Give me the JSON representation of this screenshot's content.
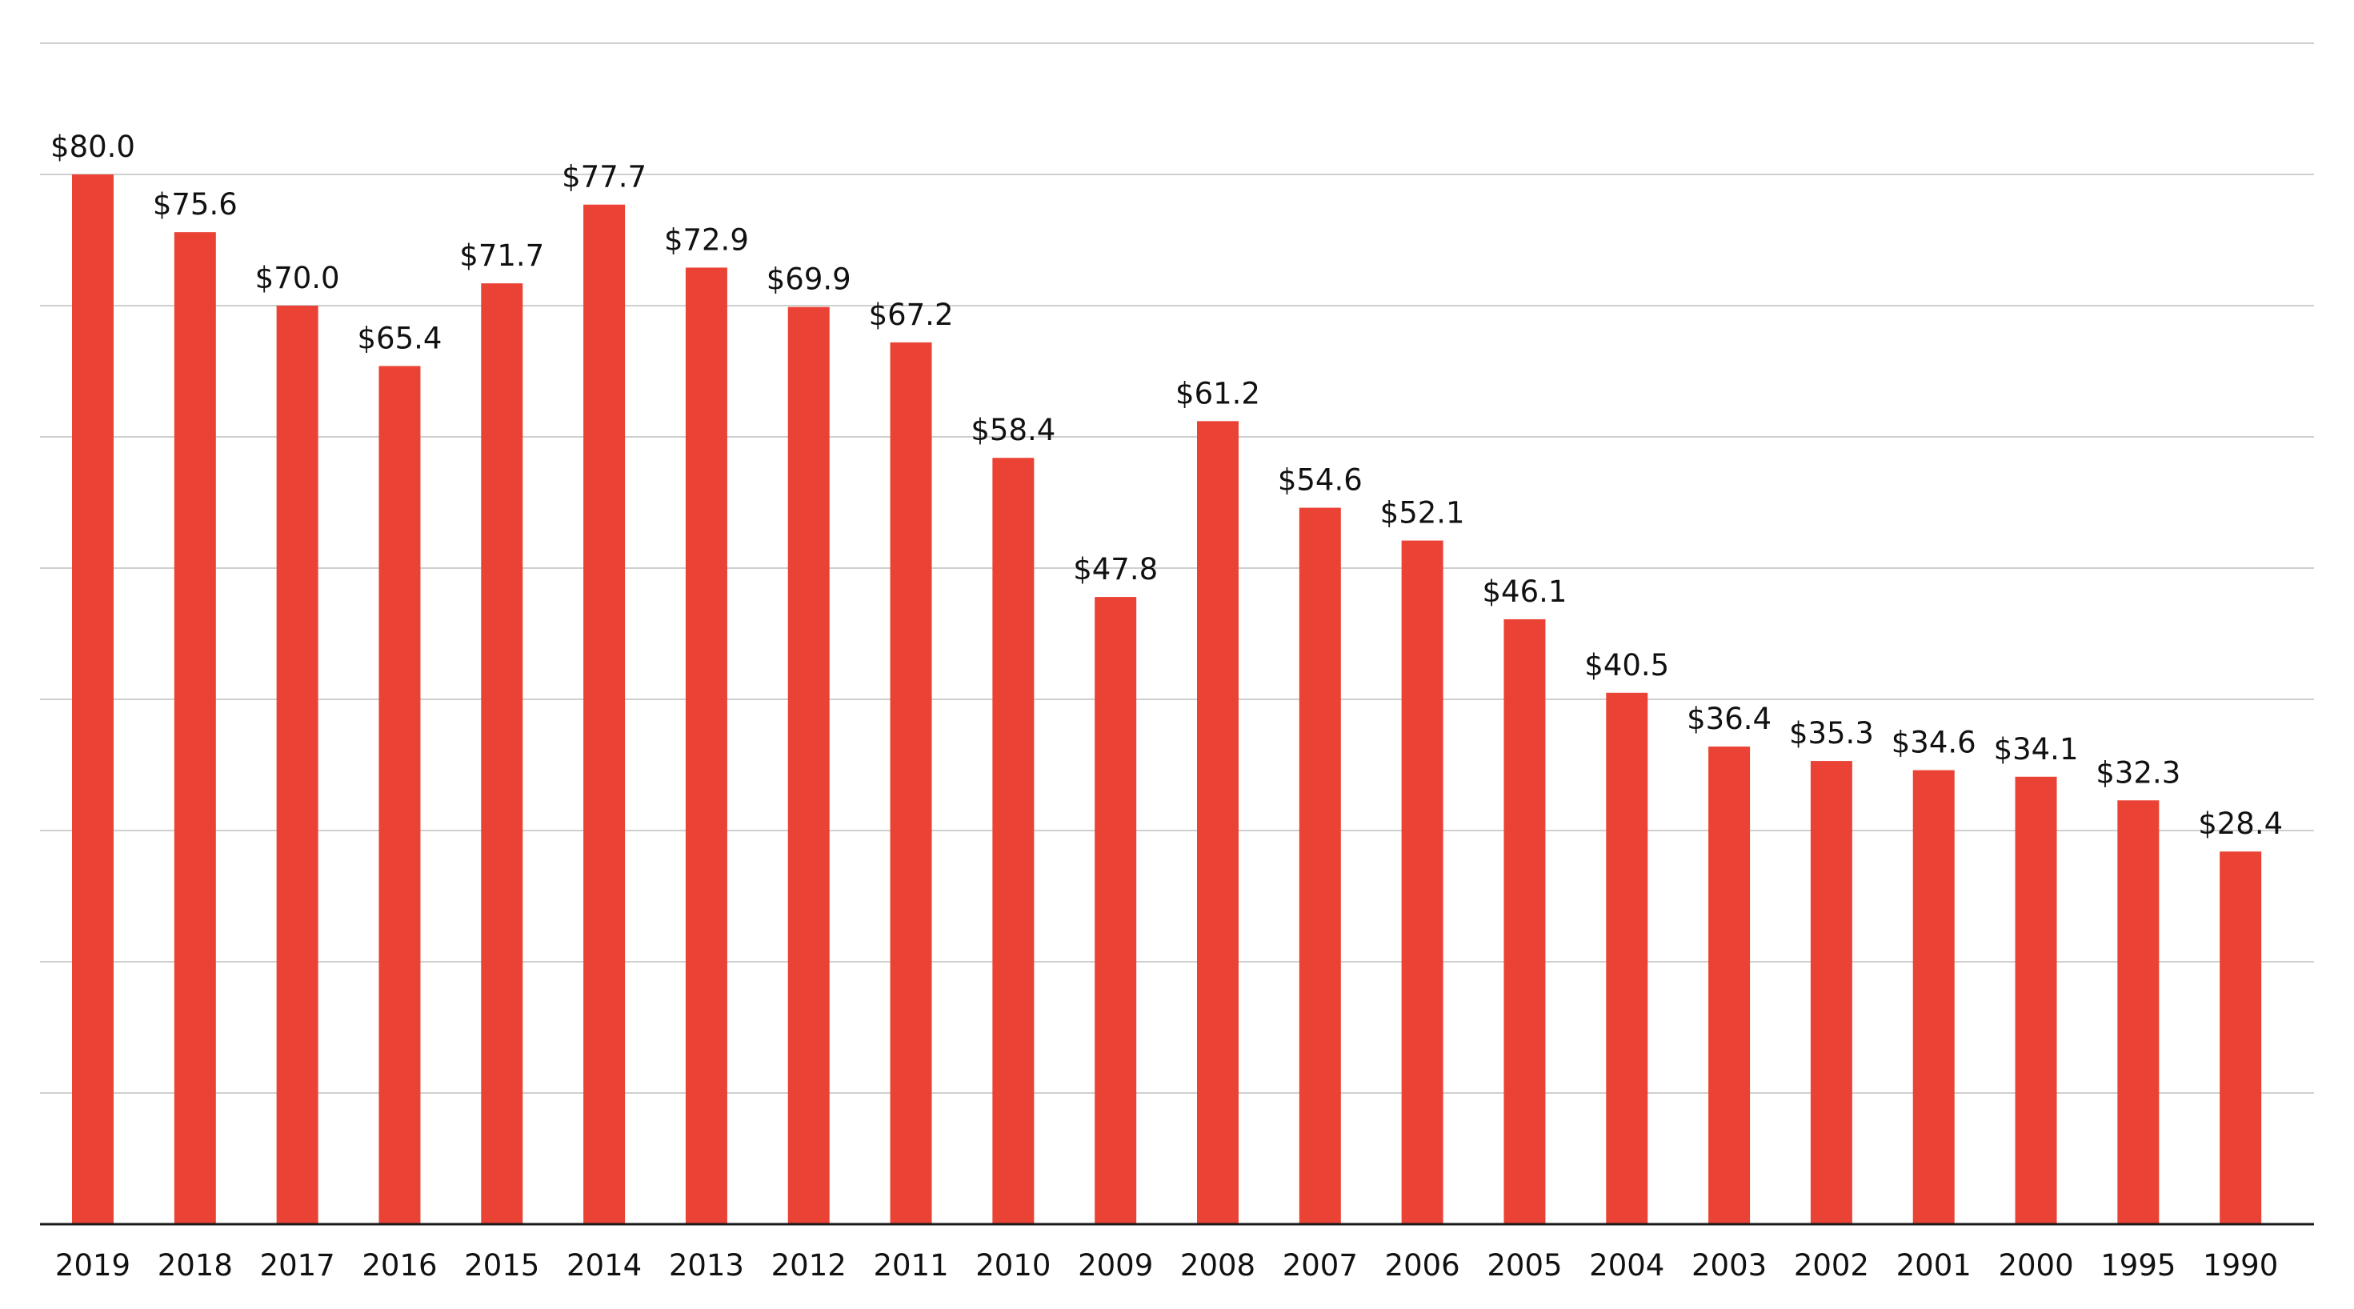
{
  "chart_data": {
    "type": "bar",
    "title": "",
    "xlabel": "",
    "ylabel": "",
    "categories": [
      "2019",
      "2018",
      "2017",
      "2016",
      "2015",
      "2014",
      "2013",
      "2012",
      "2011",
      "2010",
      "2009",
      "2008",
      "2007",
      "2006",
      "2005",
      "2004",
      "2003",
      "2002",
      "2001",
      "2000",
      "1995",
      "1990"
    ],
    "values": [
      80.0,
      75.6,
      70.0,
      65.4,
      71.7,
      77.7,
      72.9,
      69.9,
      67.2,
      58.4,
      47.8,
      61.2,
      54.6,
      52.1,
      46.1,
      40.5,
      36.4,
      35.3,
      34.6,
      34.1,
      32.3,
      28.4
    ],
    "data_labels": [
      "$80.0",
      "$75.6",
      "$70.0",
      "$65.4",
      "$71.7",
      "$77.7",
      "$72.9",
      "$69.9",
      "$67.2",
      "$58.4",
      "$47.8",
      "$61.2",
      "$54.6",
      "$52.1",
      "$46.1",
      "$40.5",
      "$36.4",
      "$35.3",
      "$34.6",
      "$34.1",
      "$32.3",
      "$28.4"
    ],
    "ylim": [
      0,
      90
    ],
    "ytick_step": 10,
    "grid": true,
    "y_tick_labels_shown": false,
    "colors": {
      "bar": "#ea4335",
      "grid": "#cfcfcf",
      "axis": "#1a1a1a"
    }
  }
}
